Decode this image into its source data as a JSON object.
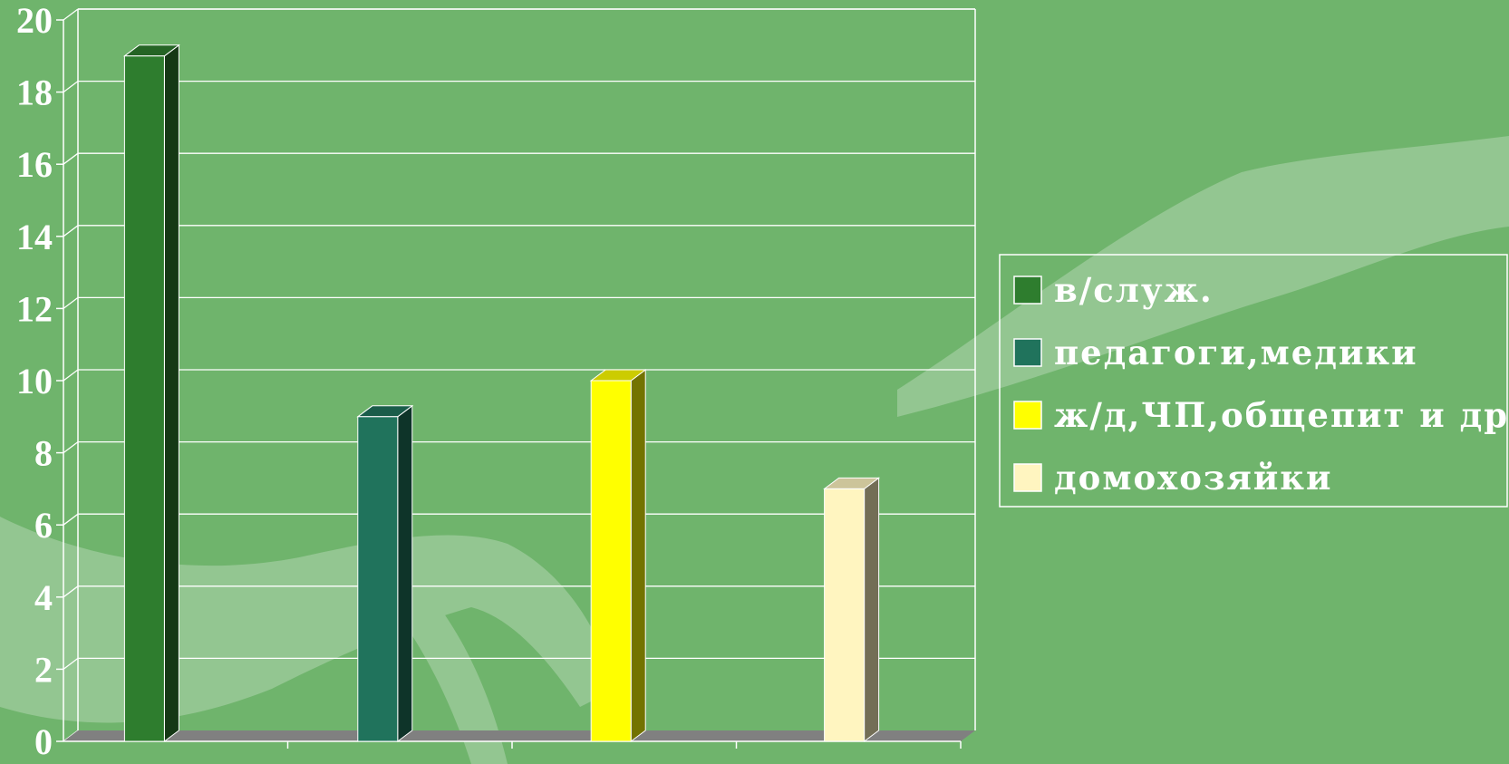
{
  "chart_data": {
    "type": "bar",
    "categories": [
      "в/служ.",
      "педагоги,медики",
      "ж/д,ЧП,общепит и др.",
      "домохозяйки"
    ],
    "series": [
      {
        "name": "в/служ.",
        "value": 19,
        "color": "#2e7d2e"
      },
      {
        "name": "педагоги,медики",
        "value": 9,
        "color": "#20735c"
      },
      {
        "name": "ж/д,ЧП,общепит и др.",
        "value": 10,
        "color": "#ffff00"
      },
      {
        "name": "домохозяйки",
        "value": 7,
        "color": "#fff5c0"
      }
    ],
    "title": "",
    "xlabel": "",
    "ylabel": "",
    "ylim": [
      0,
      20
    ],
    "yticks": [
      "0",
      "2",
      "4",
      "6",
      "8",
      "10",
      "12",
      "14",
      "16",
      "18",
      "20"
    ],
    "grid": true,
    "legend": "right",
    "style": "3d-column"
  },
  "colors": {
    "background": "#6fb46c",
    "grid": "#ffffff",
    "floor": "#808080",
    "text": "#ffffff"
  }
}
